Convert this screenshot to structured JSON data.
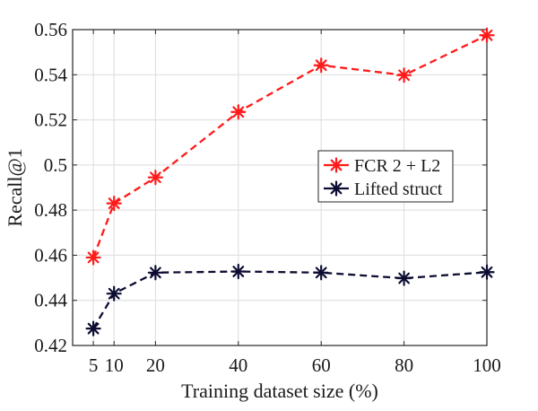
{
  "chart_data": {
    "type": "line",
    "title": "",
    "xlabel": "Training dataset size (%)",
    "ylabel": "Recall@1",
    "x": [
      5,
      10,
      20,
      40,
      60,
      80,
      100
    ],
    "xticks": [
      5,
      10,
      20,
      40,
      60,
      80,
      100
    ],
    "xtick_labels": [
      "5",
      "10",
      "20",
      "40",
      "60",
      "80",
      "100"
    ],
    "yticks": [
      0.42,
      0.44,
      0.46,
      0.48,
      0.5,
      0.52,
      0.54,
      0.56
    ],
    "ytick_labels": [
      "0.42",
      "0.44",
      "0.46",
      "0.48",
      "0.5",
      "0.52",
      "0.54",
      "0.56"
    ],
    "xlim": [
      0,
      100
    ],
    "ylim": [
      0.42,
      0.56
    ],
    "grid": true,
    "legend_position": "right",
    "series": [
      {
        "name": "FCR 2 + L2",
        "color": "#ff1a1a",
        "marker": "asterisk",
        "line_style": "dashed",
        "values": [
          0.459,
          0.483,
          0.4945,
          0.5235,
          0.5442,
          0.5398,
          0.5575
        ]
      },
      {
        "name": "Lifted struct",
        "color": "#0d0d33",
        "marker": "asterisk",
        "line_style": "dashed",
        "values": [
          0.4275,
          0.443,
          0.4523,
          0.4528,
          0.4523,
          0.4498,
          0.4525
        ]
      }
    ]
  }
}
